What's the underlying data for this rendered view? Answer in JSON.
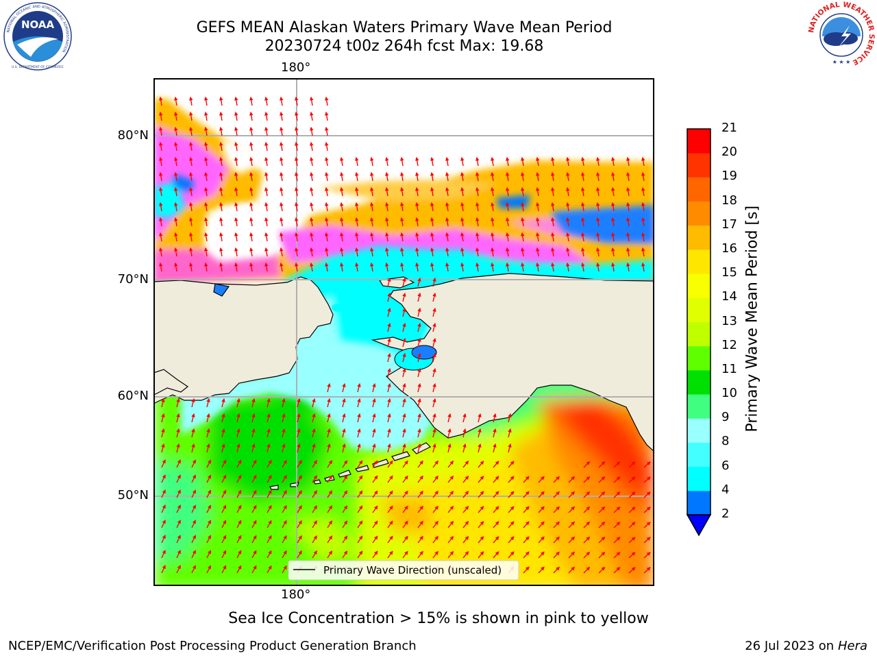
{
  "title": {
    "line1": "GEFS MEAN Alaskan Waters Primary Wave Mean Period",
    "line2": "20230724 t00z 264h fcst   Max: 19.68"
  },
  "logos": {
    "left": {
      "name": "NOAA",
      "ring_text": "NATIONAL OCEANIC AND ATMOSPHERIC ADMINISTRATION",
      "bottom_text": "U.S. DEPARTMENT OF COMMERCE"
    },
    "right": {
      "ring_text": "NATIONAL WEATHER SERVICE"
    }
  },
  "map": {
    "top_lon_label": "180°",
    "bottom_lon_label": "180°",
    "lat_labels": [
      "80°N",
      "70°N",
      "60°N",
      "50°N"
    ],
    "legend": "Primary Wave Direction (unscaled)",
    "colors": {
      "land": "#efecdc",
      "grid": "#b0b0b0",
      "arrow": "#ff0000",
      "open_ice": "#ffffff"
    }
  },
  "colorbar": {
    "label": "Primary Wave Mean Period [s]",
    "ticks": [
      "2",
      "4",
      "6",
      "8",
      "9",
      "10",
      "11",
      "12",
      "13",
      "14",
      "15",
      "16",
      "17",
      "18",
      "19",
      "20",
      "21"
    ],
    "colors": [
      "#0077ff",
      "#00ffff",
      "#44ffff",
      "#99ffff",
      "#40ff80",
      "#00e000",
      "#60ff00",
      "#c0ff00",
      "#e0ff00",
      "#f8ff00",
      "#ffe600",
      "#ffbb00",
      "#ff8c00",
      "#ff6600",
      "#ff3300",
      "#ff0000"
    ],
    "under_color": "#0000ff"
  },
  "caption": "Sea Ice Concentration > 15% is shown in pink to yellow",
  "footer": {
    "left": "NCEP/EMC/Verification Post Processing Product Generation Branch",
    "date": "26 Jul 2023 on ",
    "machine": "Hera"
  }
}
